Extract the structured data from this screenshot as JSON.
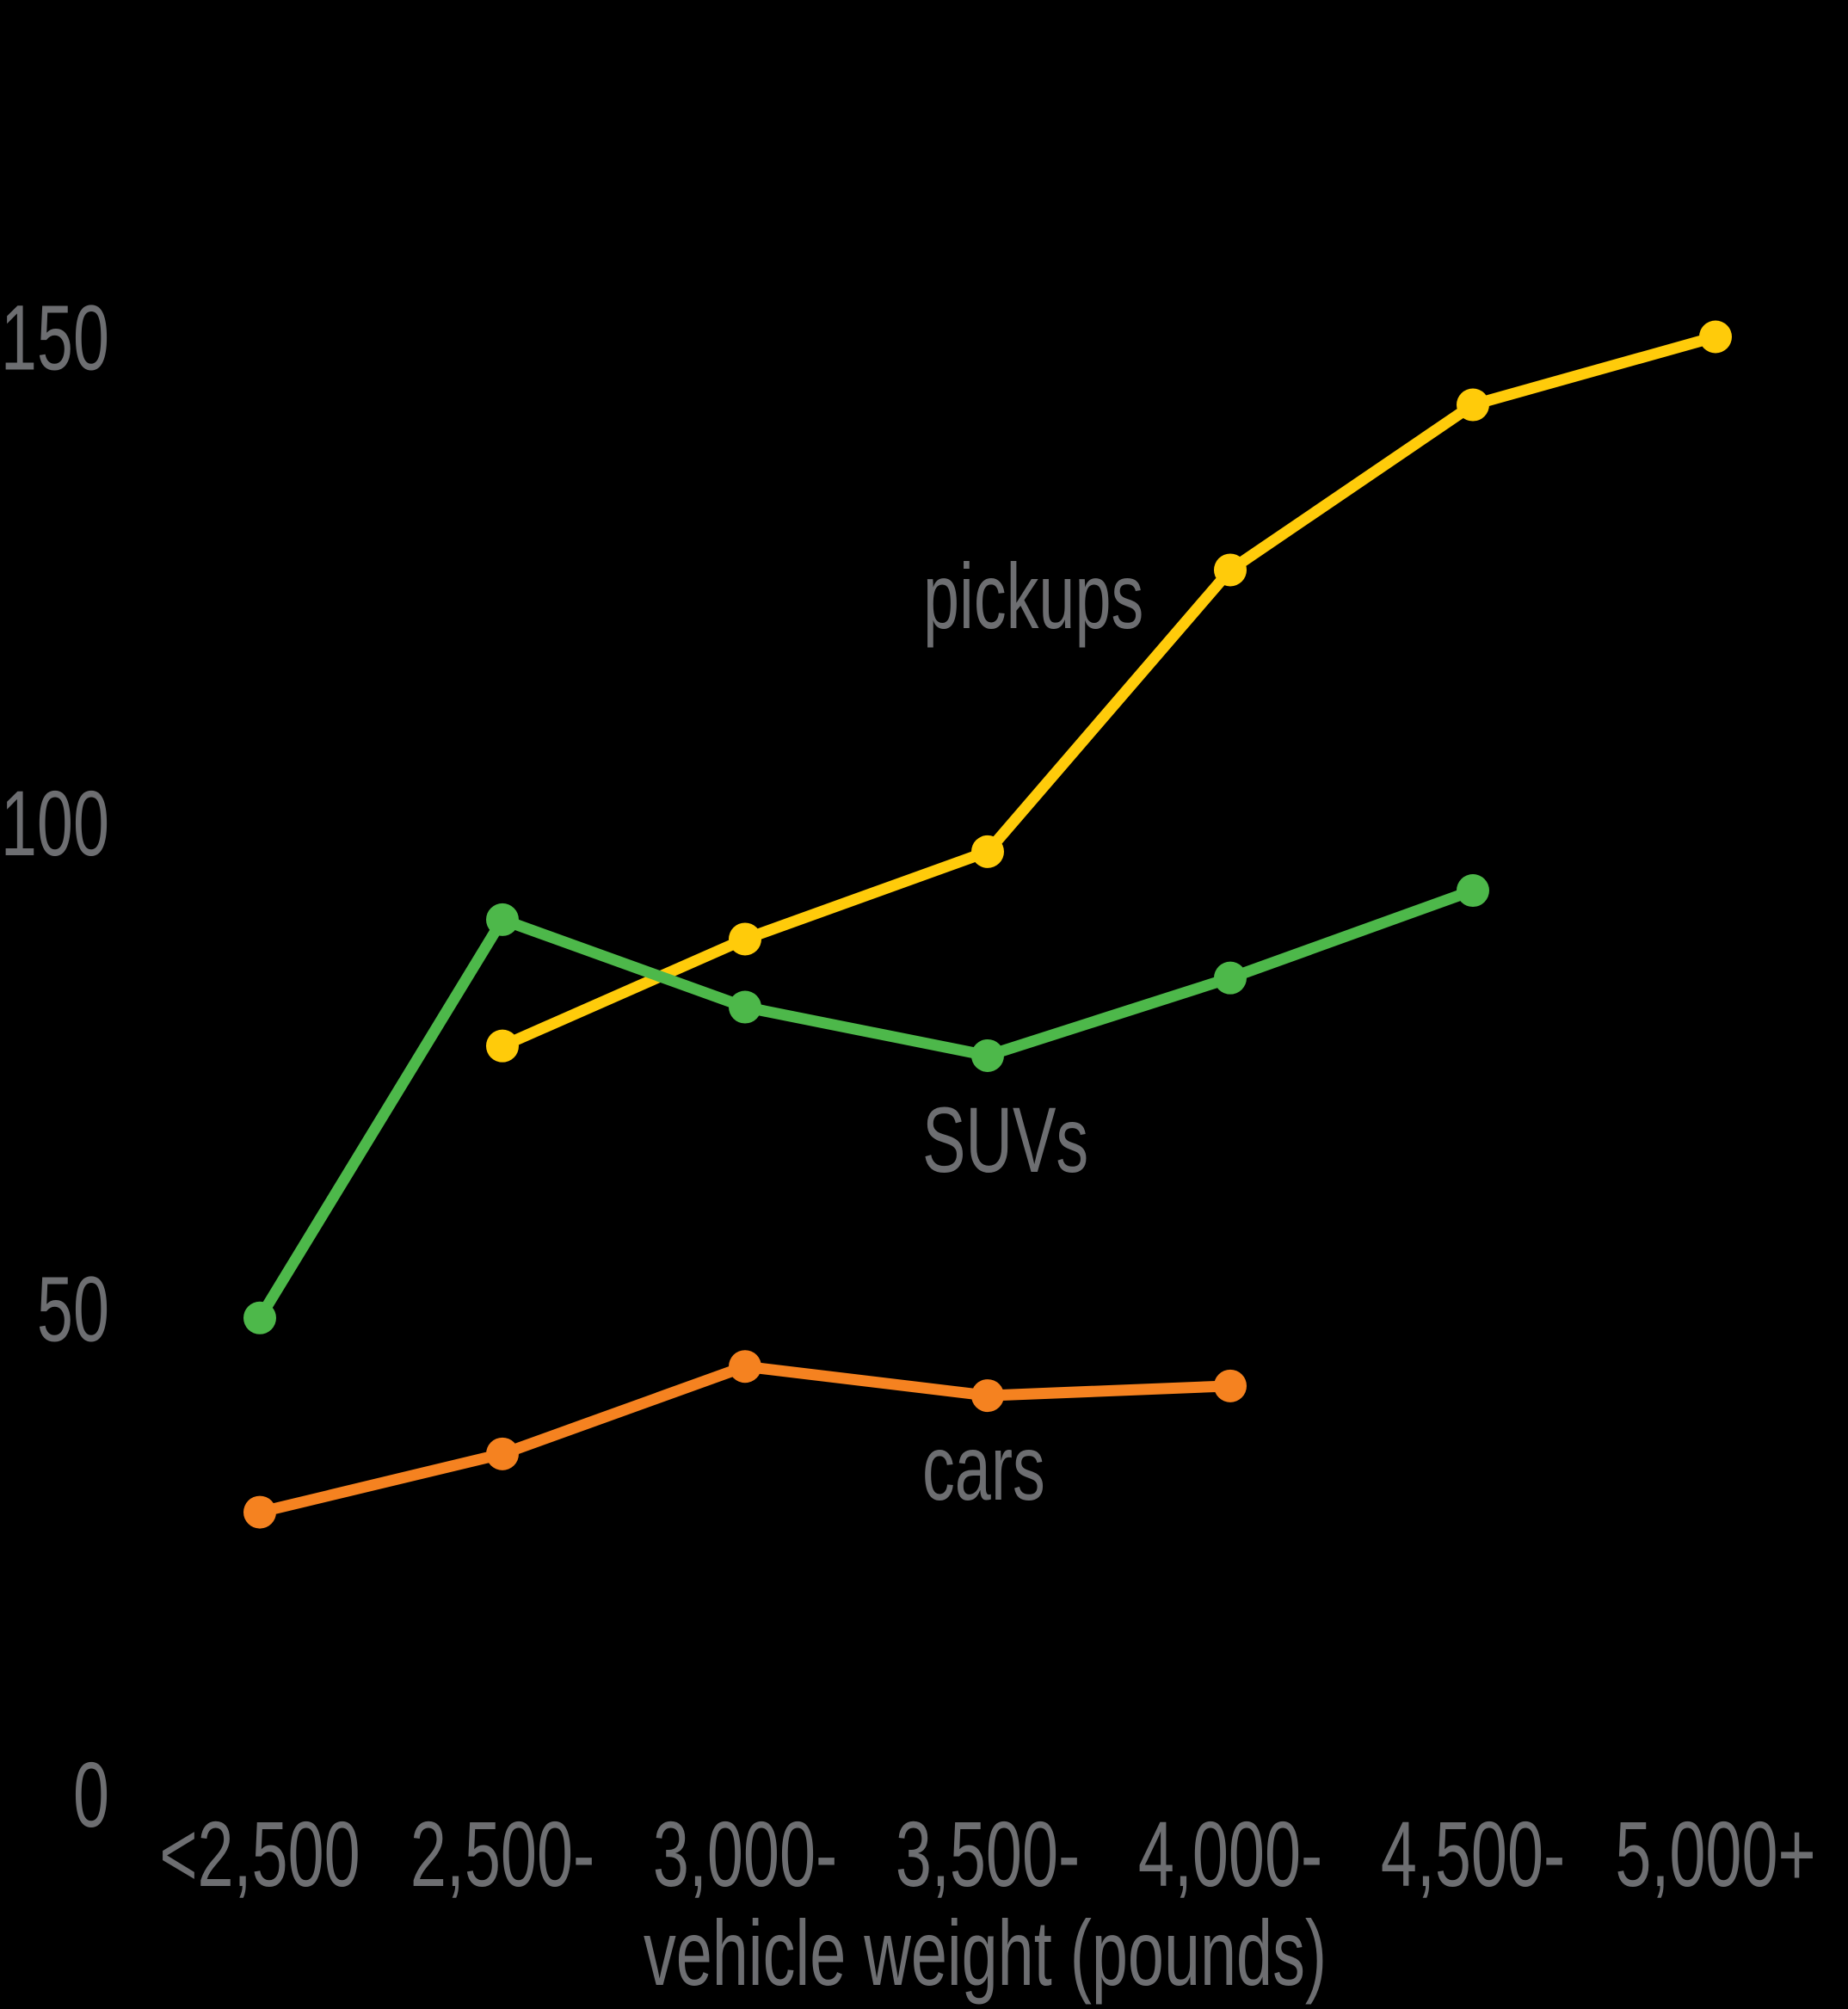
{
  "chart_data": {
    "type": "line",
    "title": "",
    "xlabel": "vehicle weight (pounds)",
    "ylabel": "",
    "categories": [
      "<2,500",
      "2,500-",
      "3,000-",
      "3,500-",
      "4,000-",
      "4,500-",
      "5,000+"
    ],
    "y_ticks": [
      0,
      50,
      100,
      150
    ],
    "ylim": [
      0,
      160
    ],
    "grid": false,
    "legend": "inline labels",
    "series": [
      {
        "name": "pickups",
        "color": "#FFCB0A",
        "values": [
          null,
          77,
          88,
          97,
          126,
          143,
          150
        ],
        "label_pos": {
          "x": 1073,
          "y": 730
        }
      },
      {
        "name": "SUVs",
        "color": "#4DB84A",
        "values": [
          49,
          90,
          81,
          76,
          84,
          93,
          null
        ],
        "label_pos": {
          "x": 1072,
          "y": 1362
        }
      },
      {
        "name": "cars",
        "color": "#F58220",
        "values": [
          29,
          35,
          44,
          41,
          42,
          null,
          null
        ],
        "label_pos": {
          "x": 1072,
          "y": 1743
        }
      }
    ]
  },
  "style": {
    "background": "#000000",
    "text_color": "#6D6E71"
  }
}
